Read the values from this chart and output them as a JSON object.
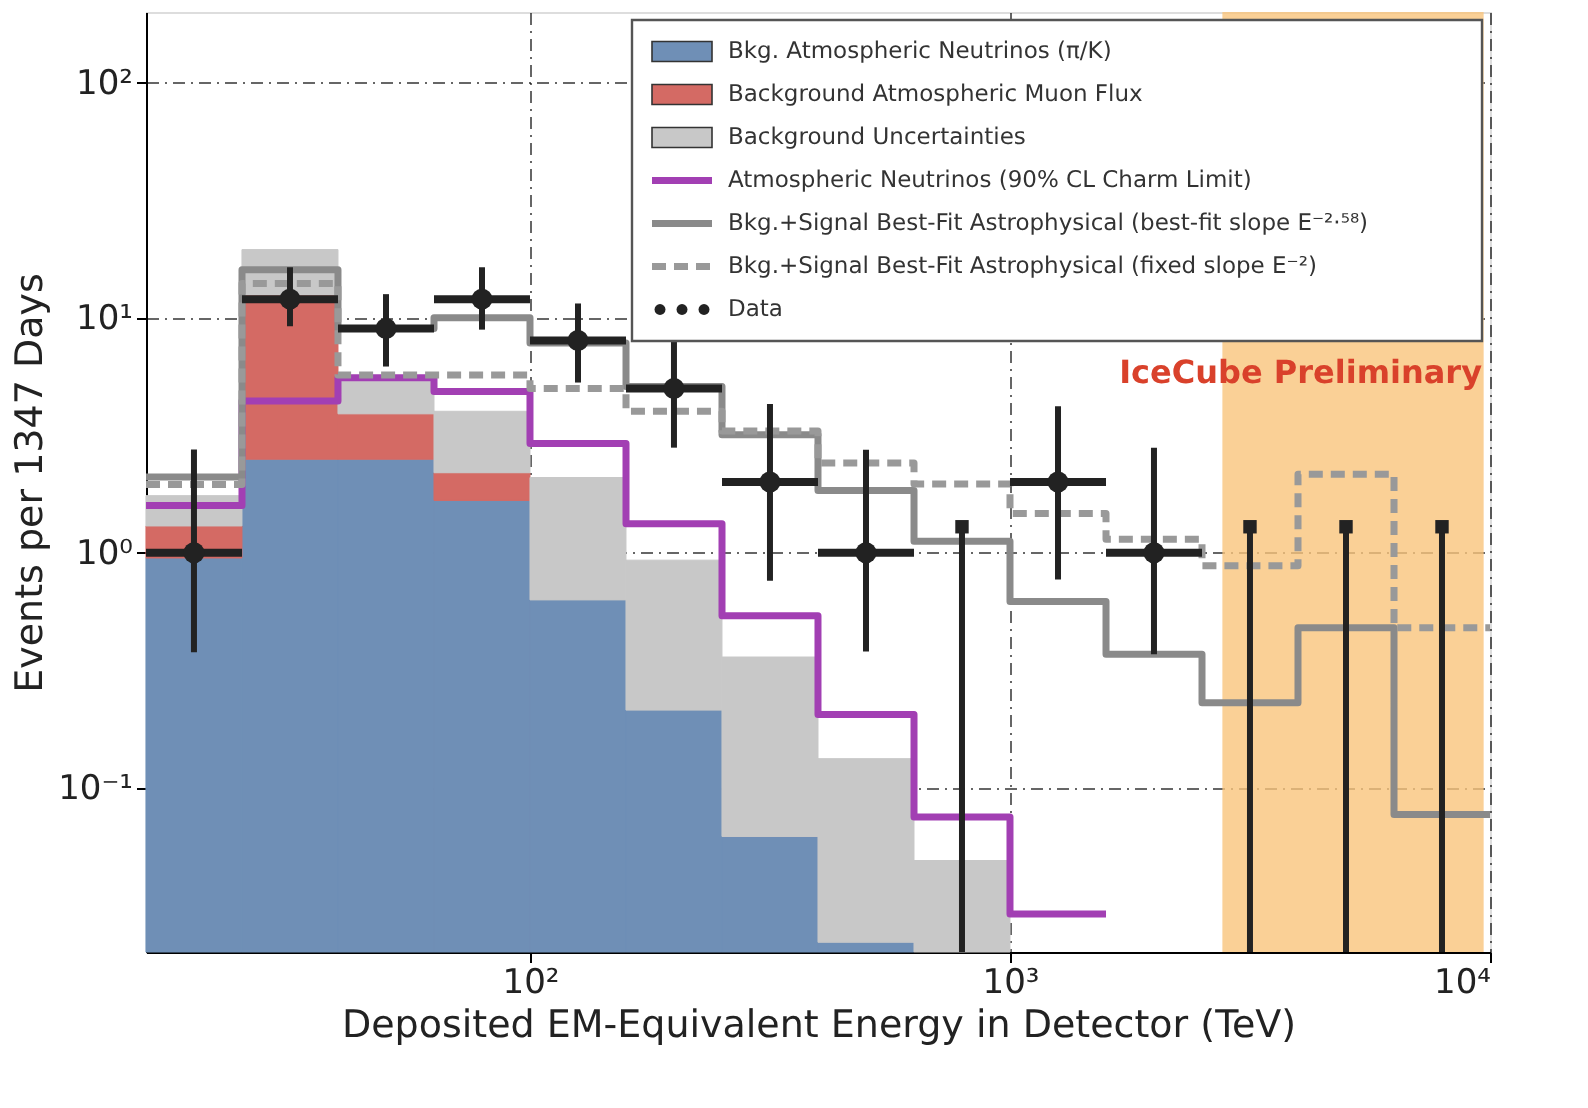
{
  "chart_data": {
    "type": "line",
    "xlabel": "Deposited EM-Equivalent Energy in Detector (TeV)",
    "ylabel": "Events per 1347 Days",
    "xlim": [
      15.85,
      10000
    ],
    "ylim": [
      0.02,
      200
    ],
    "log": "xy",
    "grid": true,
    "stacked": true,
    "legend": "top right",
    "xticks": [
      {
        "value": 100,
        "label": "10²"
      },
      {
        "value": 1000,
        "label": "10³"
      },
      {
        "value": 10000,
        "label": "10⁴"
      }
    ],
    "yticks": [
      {
        "value": 0.1,
        "label": "10⁻¹"
      },
      {
        "value": 1,
        "label": "10⁰"
      },
      {
        "value": 10,
        "label": "10¹"
      },
      {
        "value": 100,
        "label": "10²"
      }
    ],
    "series": [
      {
        "name": "Bkg. Atmospheric Neutrinos (π/K)",
        "type": "bar",
        "color": "#6f8fb6",
        "x": [
          19.95,
          31.62,
          50.12,
          79.43,
          125.9,
          199.5,
          316.2,
          501.2
        ],
        "values": [
          0.95,
          2.5,
          2.5,
          1.67,
          0.63,
          0.214,
          0.062,
          0.022
        ]
      },
      {
        "name": "Background Atmospheric Muon Flux",
        "type": "bar",
        "color": "#d46a64",
        "x": [
          19.95,
          31.62,
          50.12,
          79.43
        ],
        "values": [
          0.35,
          10,
          1.4,
          0.52
        ]
      },
      {
        "name": "Background Uncertainties",
        "type": "bar",
        "color": "#c8c8c8",
        "x": [
          19.95,
          31.62,
          50.12,
          79.43,
          125.9,
          199.5,
          316.2,
          501.2,
          794.3
        ],
        "values": [
          0.45,
          7,
          1.45,
          1.81,
          1.46,
          0.716,
          0.298,
          0.111,
          0.049
        ]
      },
      {
        "name": "Atmospheric Neutrinos (90% CL Charm Limit)",
        "color": "#a23fb3",
        "line_style": "solid",
        "x": [
          15.85,
          25.12,
          25.12,
          39.81,
          39.81,
          63.1,
          63.1,
          100,
          100,
          158.5,
          158.5,
          251.2,
          251.2,
          398.1,
          398.1,
          631,
          631,
          1000,
          1000,
          1585
        ],
        "values": [
          1.59,
          1.59,
          4.42,
          4.42,
          5.55,
          5.55,
          4.85,
          4.85,
          2.92,
          2.92,
          1.33,
          1.33,
          0.54,
          0.54,
          0.205,
          0.205,
          0.075,
          0.075,
          0.029,
          0.029
        ]
      },
      {
        "name": "Bkg.+Signal Best-Fit Astrophysical (best-fit slope E⁻²·⁵⁸)",
        "color": "#8a8a8a",
        "line_style": "solid",
        "x": [
          15.85,
          25.12,
          25.12,
          39.81,
          39.81,
          63.1,
          63.1,
          100,
          100,
          158.5,
          158.5,
          251.2,
          251.2,
          398.1,
          398.1,
          631,
          631,
          1000,
          1000,
          1585,
          1585,
          2512,
          2512,
          3981,
          3981,
          6310,
          6310,
          10000
        ],
        "values": [
          2.1,
          2.1,
          16,
          16,
          9,
          9,
          10,
          10,
          7.8,
          7.8,
          5.1,
          5.1,
          3.18,
          3.18,
          1.84,
          1.84,
          1.12,
          1.12,
          0.62,
          0.62,
          0.37,
          0.37,
          0.23,
          0.23,
          0.48,
          0.48,
          0.077,
          0.077
        ]
      },
      {
        "name": "Bkg.+Signal Best-Fit Astrophysical (fixed slope E⁻²)",
        "color": "#999999",
        "line_style": "dashed",
        "x": [
          15.85,
          25.12,
          25.12,
          39.81,
          39.81,
          63.1,
          63.1,
          100,
          100,
          158.5,
          158.5,
          251.2,
          251.2,
          398.1,
          398.1,
          631,
          631,
          1000,
          1000,
          1585,
          1585,
          2512,
          2512,
          3981,
          3981,
          6310,
          6310,
          10000
        ],
        "values": [
          1.95,
          1.95,
          14,
          14,
          5.7,
          5.7,
          5.7,
          5.7,
          5.0,
          5.0,
          4.0,
          4.0,
          3.3,
          3.3,
          2.41,
          2.41,
          1.96,
          1.96,
          1.47,
          1.47,
          1.14,
          1.14,
          0.88,
          0.88,
          2.16,
          2.16,
          0.48,
          0.48
        ]
      },
      {
        "name": "Data",
        "type": "scatter",
        "color": "#222222",
        "marker": "circle",
        "x": [
          19.95,
          31.62,
          50.12,
          79.43,
          125.9,
          199.5,
          316.2,
          501.2,
          1259,
          1995
        ],
        "values": [
          1,
          12,
          9,
          12,
          8,
          5,
          2,
          1,
          2,
          1
        ],
        "errors": [
          [
            0.377,
            2.75
          ],
          [
            9.2,
            16.4
          ],
          [
            6.2,
            12.6
          ],
          [
            8.9,
            16.4
          ],
          [
            5.3,
            11.5
          ],
          [
            2.8,
            7.9
          ],
          [
            0.76,
            4.3
          ],
          [
            0.38,
            2.74
          ],
          [
            0.77,
            4.2
          ],
          [
            0.37,
            2.8
          ]
        ],
        "xerrors": [
          [
            15.85,
            25.12
          ],
          [
            25.12,
            39.81
          ],
          [
            39.81,
            63.1
          ],
          [
            63.1,
            100
          ],
          [
            100,
            158.5
          ],
          [
            158.5,
            251.2
          ],
          [
            251.2,
            398.1
          ],
          [
            398.1,
            631
          ],
          [
            1000,
            1585
          ],
          [
            1585,
            2512
          ]
        ]
      },
      {
        "type": "lollipop",
        "color": "#222222",
        "marker": "square",
        "x": [
          794.3,
          3162,
          5012,
          7943
        ],
        "values": [
          1.29,
          1.29,
          1.29,
          1.29
        ]
      }
    ],
    "bands": [
      {
        "axis": "x",
        "from": 2770,
        "to": 9700,
        "color": "#f9c47c"
      }
    ],
    "annotations": [
      "IceCube Preliminary"
    ]
  }
}
